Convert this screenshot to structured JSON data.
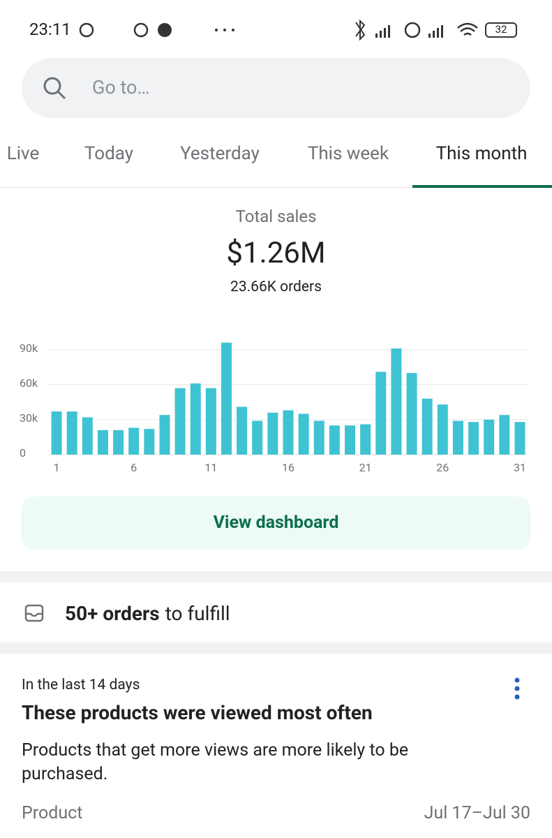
{
  "status_bar": {
    "time": "23:11",
    "battery": "32"
  },
  "search": {
    "placeholder": "Go to…"
  },
  "tabs": {
    "items": [
      "Live",
      "Today",
      "Yesterday",
      "This week",
      "This month"
    ],
    "selected": 4
  },
  "summary": {
    "label": "Total sales",
    "value": "$1.26M",
    "orders": "23.66K orders"
  },
  "chart_data": {
    "type": "bar",
    "color": "#3fc3d3",
    "categories": [
      "1",
      null,
      null,
      null,
      null,
      "6",
      null,
      null,
      null,
      null,
      "11",
      null,
      null,
      null,
      null,
      "16",
      null,
      null,
      null,
      null,
      "21",
      null,
      null,
      null,
      null,
      "26",
      null,
      null,
      null,
      null,
      "31"
    ],
    "values": [
      37000,
      37000,
      32000,
      21000,
      21000,
      23000,
      22000,
      34000,
      57000,
      61000,
      57000,
      96000,
      41000,
      29000,
      36000,
      38000,
      35000,
      29000,
      25000,
      25000,
      26000,
      71000,
      91000,
      70000,
      48000,
      43000,
      29000,
      28000,
      30000,
      34000,
      28000
    ],
    "ylim": [
      0,
      100000
    ],
    "yticks": [
      0,
      {
        "value": 30000,
        "label": "30k"
      },
      {
        "value": 60000,
        "label": "60k"
      },
      {
        "value": 90000,
        "label": "90k"
      }
    ],
    "grid": true
  },
  "button": {
    "label": "View dashboard"
  },
  "fulfill": {
    "bold": "50+ orders",
    "rest": "to fulfill"
  },
  "card": {
    "eyebrow": "In the last 14 days",
    "title": "These products were viewed most often",
    "body": "Products that get more views are more likely to be purchased.",
    "column_left": "Product",
    "column_right": "Jul 17–Jul 30"
  }
}
